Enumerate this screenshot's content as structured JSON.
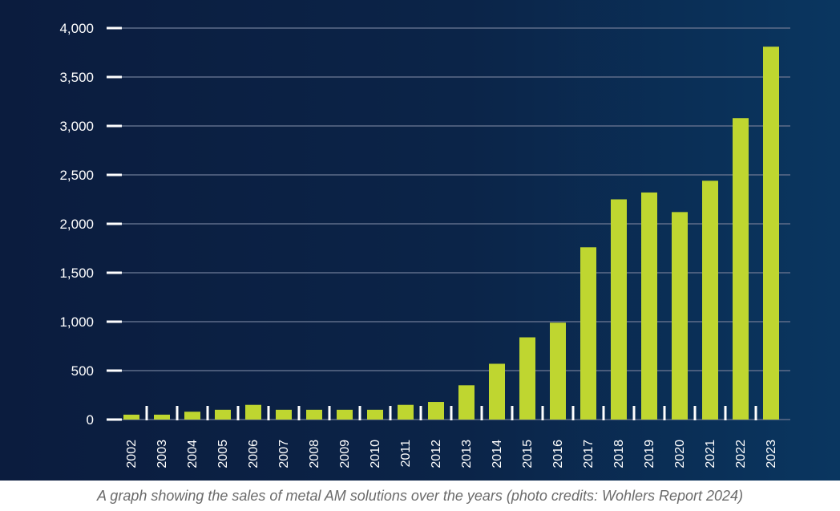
{
  "chart_data": {
    "type": "bar",
    "categories": [
      "2002",
      "2003",
      "2004",
      "2005",
      "2006",
      "2007",
      "2008",
      "2009",
      "2010",
      "2011",
      "2012",
      "2013",
      "2014",
      "2015",
      "2016",
      "2017",
      "2018",
      "2019",
      "2020",
      "2021",
      "2022",
      "2023"
    ],
    "values": [
      50,
      50,
      80,
      100,
      150,
      100,
      100,
      100,
      100,
      150,
      180,
      350,
      570,
      840,
      990,
      1760,
      2250,
      2320,
      2120,
      2440,
      3080,
      3810
    ],
    "yticks": [
      "0",
      "500",
      "1,000",
      "1,500",
      "2,000",
      "2,500",
      "3,000",
      "3,500",
      "4,000"
    ],
    "ylim": [
      0,
      4000
    ],
    "bar_color": "#bfd630",
    "background_color": "#0b2448",
    "grid": true
  },
  "caption": "A graph showing the sales of metal AM solutions over the years (photo credits: Wohlers Report 2024)"
}
